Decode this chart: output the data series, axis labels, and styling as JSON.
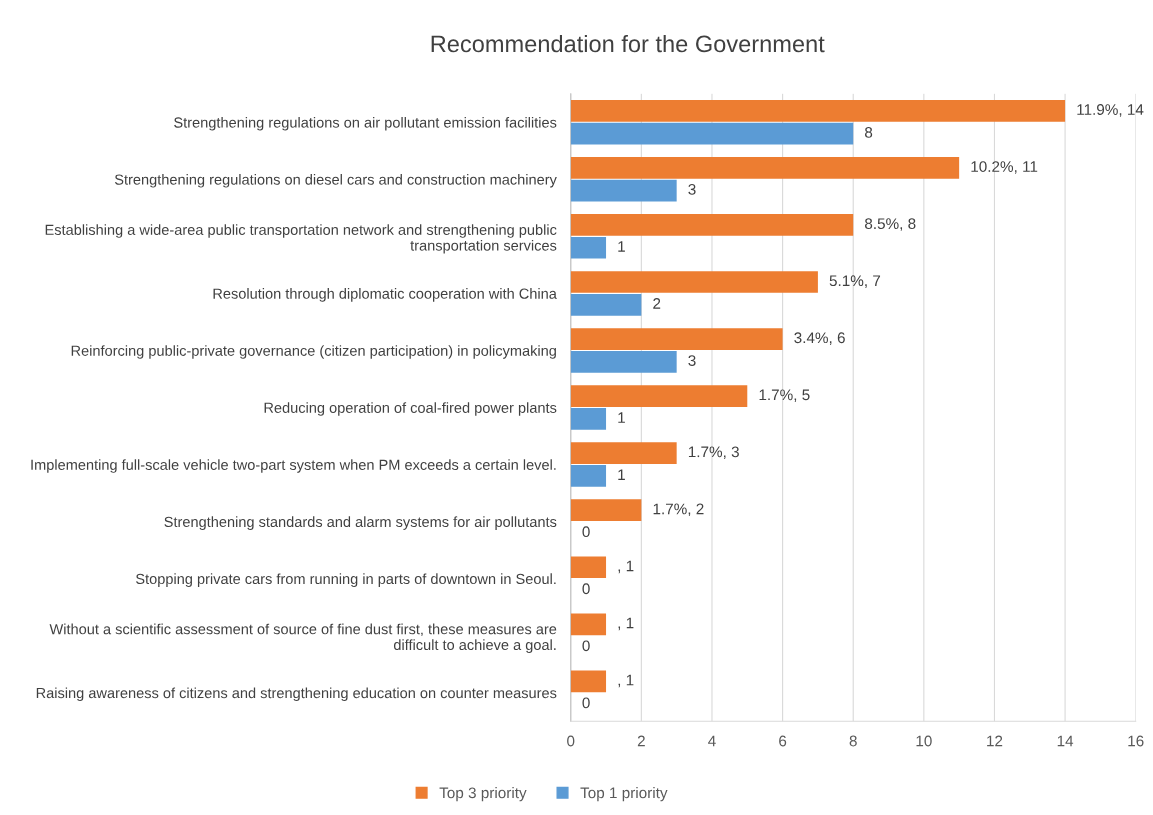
{
  "chart_data": {
    "type": "bar",
    "orientation": "horizontal",
    "title": "Recommendation for the Government",
    "categories": [
      "Strengthening regulations on air pollutant emission facilities",
      "Strengthening regulations on diesel cars and construction machinery",
      "Establishing a wide-area public transportation network and strengthening public\ntransportation services",
      "Resolution through diplomatic cooperation with China",
      "Reinforcing public-private governance (citizen participation) in policymaking",
      "Reducing operation of coal-fired power plants",
      "Implementing full-scale vehicle two-part system when PM exceeds a certain level.",
      "Strengthening standards and alarm systems for air pollutants",
      "Stopping private cars from running in parts of downtown in Seoul.",
      "Without a scientific assessment of source of fine dust first, these measures are\ndifficult to achieve a goal.",
      "Raising awareness of citizens and strengthening education on counter measures"
    ],
    "series": [
      {
        "name": "Top 3 priority",
        "color": "#ed7d31",
        "values": [
          14,
          11,
          8,
          7,
          6,
          5,
          3,
          2,
          1,
          1,
          1
        ],
        "value_labels": [
          "11.9%, 14",
          "10.2%, 11",
          "8.5%, 8",
          "5.1%, 7",
          "3.4%, 6",
          "1.7%, 5",
          "1.7%, 3",
          "1.7%, 2",
          ", 1",
          ", 1",
          ", 1"
        ]
      },
      {
        "name": "Top 1 priority",
        "color": "#5b9bd5",
        "values": [
          8,
          3,
          1,
          2,
          3,
          1,
          1,
          0,
          0,
          0,
          0
        ],
        "value_labels": [
          "8",
          "3",
          "1",
          "2",
          "3",
          "1",
          "1",
          "0",
          "0",
          "0",
          "0"
        ]
      }
    ],
    "xlim": [
      0,
      16
    ],
    "xticks": [
      0,
      2,
      4,
      6,
      8,
      10,
      12,
      14,
      16
    ],
    "grid": "x",
    "legend": "bottom"
  }
}
